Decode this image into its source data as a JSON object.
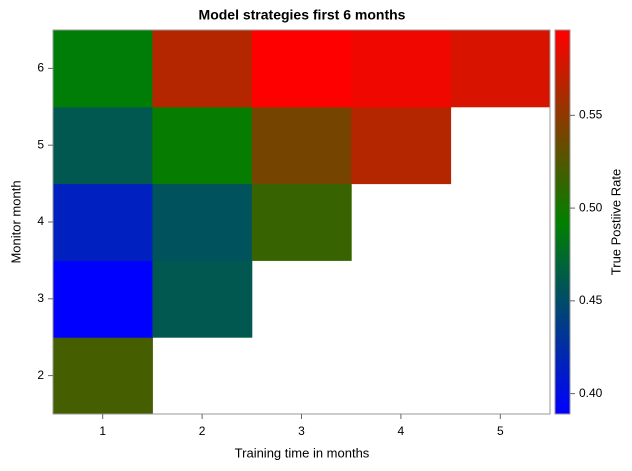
{
  "chart_data": {
    "type": "heatmap",
    "title": "Model strategies first 6 months",
    "x_label": "Training time in months",
    "y_label": "Monitor month",
    "x_categories": [
      "1",
      "2",
      "3",
      "4",
      "5"
    ],
    "y_categories": [
      "2",
      "3",
      "4",
      "5",
      "6"
    ],
    "values": [
      [
        0.52,
        null,
        null,
        null,
        null
      ],
      [
        0.389,
        0.46,
        null,
        null,
        null
      ],
      [
        0.415,
        0.455,
        0.515,
        null,
        null
      ],
      [
        0.46,
        0.495,
        0.54,
        0.565,
        null
      ],
      [
        0.49,
        0.565,
        0.596,
        0.59,
        0.58
      ]
    ],
    "colormap": [
      "#0000ff",
      "#008000",
      "#ff0000"
    ],
    "clim": [
      0.389,
      0.596
    ],
    "colorbar_label": "True Postiive Rate",
    "colorbar_ticks": [
      {
        "value": 0.4,
        "label": "0.40"
      },
      0.45,
      {
        "value": 0.5,
        "label": "0.50"
      },
      0.55
    ]
  }
}
